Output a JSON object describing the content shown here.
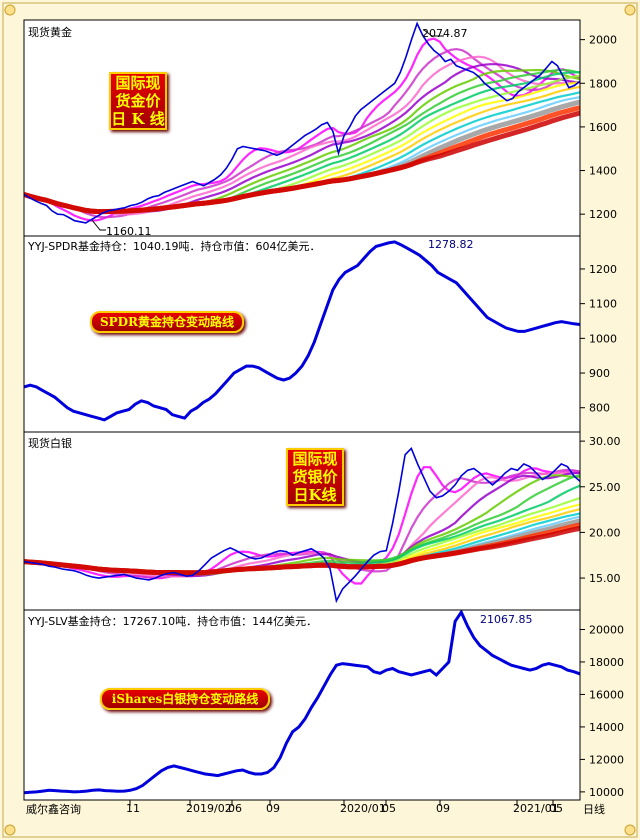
{
  "chart_data": [
    {
      "type": "line",
      "title": "现货黄金",
      "badge": [
        "国际现",
        "货金价",
        "日 K 线"
      ],
      "y_ticks": [
        1200,
        1400,
        1600,
        1800,
        2000
      ],
      "ylim": [
        1100,
        2090
      ],
      "annotations": {
        "high": "2074.87",
        "low": "1160.11"
      },
      "series": [
        {
          "values": [
            1290,
            1275,
            1262,
            1250,
            1240,
            1215,
            1200,
            1198,
            1185,
            1170,
            1165,
            1160,
            1175,
            1190,
            1205,
            1215,
            1220,
            1225,
            1230,
            1240,
            1245,
            1255,
            1270,
            1280,
            1285,
            1300,
            1310,
            1320,
            1330,
            1340,
            1350,
            1340,
            1330,
            1345,
            1360,
            1380,
            1410,
            1450,
            1500,
            1510,
            1505,
            1500,
            1495,
            1490,
            1480,
            1470,
            1480,
            1500,
            1520,
            1540,
            1560,
            1575,
            1590,
            1610,
            1620,
            1580,
            1480,
            1560,
            1600,
            1650,
            1680,
            1700,
            1720,
            1740,
            1760,
            1780,
            1800,
            1850,
            1920,
            2000,
            2074,
            2020,
            1980,
            1950,
            1930,
            1900,
            1910,
            1880,
            1870,
            1860,
            1850,
            1830,
            1800,
            1780,
            1760,
            1740,
            1720,
            1730,
            1760,
            1780,
            1800,
            1820,
            1840,
            1870,
            1900,
            1880,
            1830,
            1780,
            1790,
            1810
          ]
        }
      ]
    },
    {
      "type": "line",
      "title": "YYJ-SPDR基金持仓：1040.19吨．持仓市值：604亿美元．",
      "badge": [
        "SPDR黄金持仓变动路线"
      ],
      "y_ticks": [
        800,
        900,
        1000,
        1100,
        1200
      ],
      "ylim": [
        730,
        1295
      ],
      "annotations": {
        "high": "1278.82"
      },
      "series": [
        {
          "values": [
            860,
            865,
            860,
            850,
            840,
            830,
            815,
            800,
            790,
            785,
            780,
            775,
            770,
            765,
            775,
            785,
            790,
            795,
            810,
            820,
            815,
            805,
            800,
            795,
            780,
            775,
            770,
            790,
            800,
            815,
            825,
            840,
            860,
            880,
            900,
            910,
            920,
            920,
            915,
            905,
            895,
            885,
            880,
            885,
            900,
            920,
            950,
            990,
            1040,
            1090,
            1140,
            1170,
            1190,
            1200,
            1210,
            1230,
            1250,
            1265,
            1270,
            1275,
            1278,
            1270,
            1260,
            1250,
            1240,
            1225,
            1210,
            1190,
            1180,
            1170,
            1160,
            1140,
            1120,
            1100,
            1080,
            1060,
            1050,
            1040,
            1030,
            1025,
            1020,
            1020,
            1025,
            1030,
            1035,
            1040,
            1045,
            1048,
            1045,
            1042,
            1040
          ]
        }
      ]
    },
    {
      "type": "line",
      "title": "现货白银",
      "badge": [
        "国际现",
        "货银价",
        "日K线"
      ],
      "y_ticks": [
        15.0,
        20.0,
        25.0,
        30.0
      ],
      "ylim": [
        11.5,
        31
      ],
      "y_tick_labels": [
        "15.00",
        "20.00",
        "25.00",
        "30.00"
      ],
      "series": [
        {
          "values": [
            16.8,
            16.7,
            16.6,
            16.5,
            16.3,
            16.2,
            16.0,
            15.9,
            15.8,
            15.6,
            15.3,
            15.1,
            15.0,
            15.1,
            15.2,
            15.3,
            15.4,
            15.2,
            15.0,
            14.9,
            14.8,
            15.0,
            15.3,
            15.5,
            15.6,
            15.4,
            15.2,
            15.3,
            15.8,
            16.5,
            17.2,
            17.6,
            18.0,
            18.3,
            18.0,
            17.6,
            17.3,
            17.1,
            17.2,
            17.5,
            17.8,
            18.0,
            17.9,
            17.5,
            17.8,
            18.0,
            18.2,
            17.8,
            17.2,
            16.0,
            12.5,
            13.8,
            14.5,
            15.2,
            16.0,
            16.8,
            17.5,
            17.9,
            18.0,
            21.0,
            24.5,
            28.5,
            29.2,
            27.5,
            26.0,
            24.5,
            23.8,
            24.0,
            24.5,
            25.2,
            26.2,
            26.8,
            27.0,
            26.5,
            25.8,
            25.2,
            25.8,
            26.5,
            27.0,
            26.8,
            27.5,
            27.2,
            26.5,
            25.8,
            26.2,
            26.8,
            27.5,
            27.2,
            26.2,
            25.6
          ]
        }
      ]
    },
    {
      "type": "line",
      "title": "YYJ-SLV基金持仓：17267.10吨．持仓市值：144亿美元．",
      "badge": [
        "iShares白银持仓变动路线"
      ],
      "y_ticks": [
        10000,
        12000,
        14000,
        16000,
        18000,
        20000
      ],
      "ylim": [
        9500,
        21200
      ],
      "annotations": {
        "high": "21067.85"
      },
      "series": [
        {
          "values": [
            9950,
            9980,
            10000,
            10050,
            10100,
            10080,
            10050,
            10030,
            10000,
            10020,
            10050,
            10100,
            10120,
            10080,
            10060,
            10040,
            10050,
            10100,
            10200,
            10400,
            10700,
            11000,
            11300,
            11500,
            11600,
            11500,
            11400,
            11300,
            11200,
            11100,
            11050,
            11000,
            11100,
            11200,
            11300,
            11350,
            11200,
            11100,
            11100,
            11200,
            11500,
            12100,
            13000,
            13700,
            14000,
            14500,
            15200,
            15800,
            16500,
            17200,
            17800,
            17900,
            17850,
            17800,
            17750,
            17700,
            17400,
            17300,
            17500,
            17600,
            17400,
            17300,
            17200,
            17300,
            17400,
            17500,
            17200,
            17600,
            18000,
            20500,
            21067,
            20200,
            19500,
            19000,
            18700,
            18400,
            18200,
            18000,
            17800,
            17700,
            17600,
            17500,
            17600,
            17800,
            17900,
            17800,
            17700,
            17500,
            17400,
            17267
          ]
        }
      ]
    }
  ],
  "x_axis": {
    "corner_label": "威尔鑫咨询",
    "ticks": [
      "11",
      "2019/02",
      "06",
      "09",
      "2020/01",
      "05",
      "09",
      "2021/01",
      "05"
    ],
    "period_label": "日线"
  }
}
